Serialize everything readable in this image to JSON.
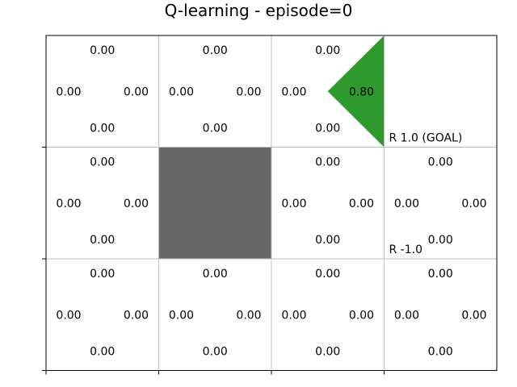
{
  "figure": {
    "title": "Q-learning - episode=0"
  },
  "grid": {
    "rows": 3,
    "cols": 4,
    "wall_cells": [
      [
        1,
        1
      ]
    ],
    "colors": {
      "wall": "#666666",
      "positive_q": "#2e9a2e",
      "gridline": "#bfbfbf",
      "frame": "#000000"
    },
    "cells": [
      {
        "row": 0,
        "col": 0,
        "up": "0.00",
        "left": "0.00",
        "right": "0.00",
        "down": "0.00"
      },
      {
        "row": 0,
        "col": 1,
        "up": "0.00",
        "left": "0.00",
        "right": "0.00",
        "down": "0.00"
      },
      {
        "row": 0,
        "col": 2,
        "up": "0.00",
        "left": "0.00",
        "right": "0.80",
        "down": "0.00",
        "highlight": {
          "direction": "right",
          "value": 0.8
        }
      },
      {
        "row": 1,
        "col": 0,
        "up": "0.00",
        "left": "0.00",
        "right": "0.00",
        "down": "0.00"
      },
      {
        "row": 1,
        "col": 2,
        "up": "0.00",
        "left": "0.00",
        "right": "0.00",
        "down": "0.00"
      },
      {
        "row": 1,
        "col": 3,
        "up": "0.00",
        "left": "0.00",
        "right": "0.00",
        "down": "0.00"
      },
      {
        "row": 2,
        "col": 0,
        "up": "0.00",
        "left": "0.00",
        "right": "0.00",
        "down": "0.00"
      },
      {
        "row": 2,
        "col": 1,
        "up": "0.00",
        "left": "0.00",
        "right": "0.00",
        "down": "0.00"
      },
      {
        "row": 2,
        "col": 2,
        "up": "0.00",
        "left": "0.00",
        "right": "0.00",
        "down": "0.00"
      },
      {
        "row": 2,
        "col": 3,
        "up": "0.00",
        "left": "0.00",
        "right": "0.00",
        "down": "0.00"
      }
    ],
    "reward_labels": [
      {
        "row": 0,
        "col": 3,
        "text": "R 1.0 (GOAL)"
      },
      {
        "row": 1,
        "col": 3,
        "text": "R -1.0"
      }
    ]
  }
}
